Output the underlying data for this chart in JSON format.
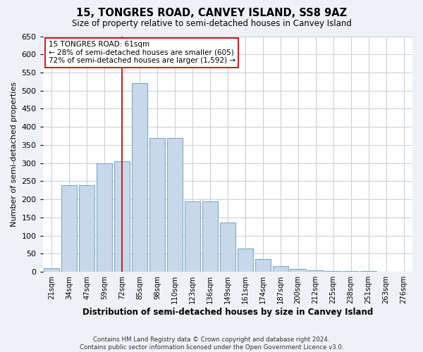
{
  "title": "15, TONGRES ROAD, CANVEY ISLAND, SS8 9AZ",
  "subtitle": "Size of property relative to semi-detached houses in Canvey Island",
  "xlabel": "Distribution of semi-detached houses by size in Canvey Island",
  "ylabel": "Number of semi-detached properties",
  "categories": [
    "21sqm",
    "34sqm",
    "47sqm",
    "59sqm",
    "72sqm",
    "85sqm",
    "98sqm",
    "110sqm",
    "123sqm",
    "136sqm",
    "149sqm",
    "161sqm",
    "174sqm",
    "187sqm",
    "200sqm",
    "212sqm",
    "225sqm",
    "238sqm",
    "251sqm",
    "263sqm",
    "276sqm"
  ],
  "values": [
    10,
    240,
    240,
    300,
    305,
    520,
    370,
    370,
    195,
    195,
    137,
    65,
    35,
    15,
    8,
    5,
    3,
    3,
    2,
    1,
    1
  ],
  "bar_color": "#c8d8ea",
  "bar_edge_color": "#7aaac8",
  "red_line_color": "#cc2222",
  "annotation_text": "15 TONGRES ROAD: 61sqm\n← 28% of semi-detached houses are smaller (605)\n72% of semi-detached houses are larger (1,592) →",
  "annotation_box_color": "#ffffff",
  "annotation_box_edge": "#cc2222",
  "ylim": [
    0,
    650
  ],
  "yticks": [
    0,
    50,
    100,
    150,
    200,
    250,
    300,
    350,
    400,
    450,
    500,
    550,
    600,
    650
  ],
  "footer": "Contains HM Land Registry data © Crown copyright and database right 2024.\nContains public sector information licensed under the Open Government Licence v3.0.",
  "background_color": "#eef2f7",
  "plot_bg_color": "#ffffff",
  "grid_color": "#c5cdd8"
}
